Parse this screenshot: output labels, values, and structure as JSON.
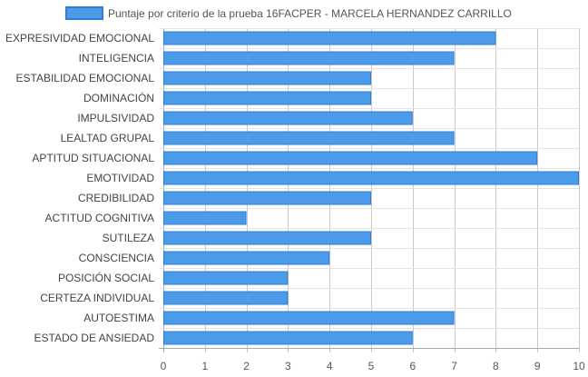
{
  "chart_data": {
    "type": "bar",
    "orientation": "horizontal",
    "legend_position": "top",
    "grid": true,
    "xlim": [
      0,
      10
    ],
    "xticks": [
      "0",
      "1",
      "2",
      "3",
      "4",
      "5",
      "6",
      "7",
      "8",
      "9",
      "10"
    ],
    "categories": [
      "EXPRESIVIDAD EMOCIONAL",
      "INTELIGENCIA",
      "ESTABILIDAD EMOCIONAL",
      "DOMINACIÓN",
      "IMPULSIVIDAD",
      "LEALTAD GRUPAL",
      "APTITUD SITUACIONAL",
      "EMOTIVIDAD",
      "CREDIBILIDAD",
      "ACTITUD COGNITIVA",
      "SUTILEZA",
      "CONSCIENCIA",
      "POSICIÓN SOCIAL",
      "CERTEZA INDIVIDUAL",
      "AUTOESTIMA",
      "ESTADO DE ANSIEDAD"
    ],
    "series": [
      {
        "name": "Puntaje por criterio de la prueba 16FACPER - MARCELA HERNANDEZ CARRILLO",
        "values": [
          8,
          7,
          5,
          5,
          6,
          7,
          9,
          10,
          5,
          2,
          5,
          4,
          3,
          3,
          7,
          6
        ],
        "color": "#4c9be8",
        "border_color": "#2f7fd6"
      }
    ]
  }
}
